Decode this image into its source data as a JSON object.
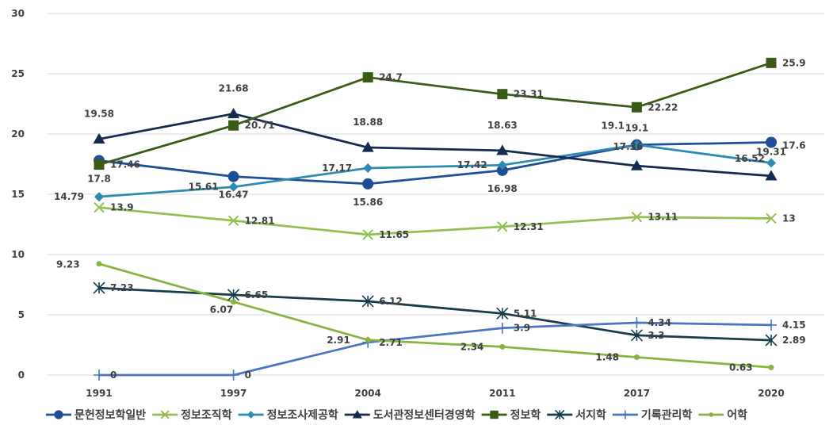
{
  "chart_data": {
    "type": "line",
    "x": [
      "1991",
      "1997",
      "2004",
      "2011",
      "2017",
      "2020"
    ],
    "ylim": [
      0,
      30
    ],
    "yticks": [
      0,
      5,
      10,
      15,
      20,
      25,
      30
    ],
    "grid": "horizontal",
    "legend": "bottom",
    "series": [
      {
        "name": "문헌정보학일반",
        "values": [
          17.8,
          16.47,
          15.86,
          16.98,
          19.1,
          19.31
        ],
        "color": "#1f4e99",
        "marker": "circle"
      },
      {
        "name": "정보조직학",
        "values": [
          13.9,
          12.81,
          11.65,
          12.31,
          13.11,
          13
        ],
        "color": "#92c050",
        "marker": "x"
      },
      {
        "name": "정보조사제공학",
        "values": [
          14.79,
          15.61,
          17.17,
          17.42,
          19.1,
          17.6
        ],
        "color": "#2e8bb0",
        "marker": "diamond"
      },
      {
        "name": "도서관정보센터경영학",
        "values": [
          19.58,
          21.68,
          18.88,
          18.63,
          17.36,
          16.52
        ],
        "color": "#152a4d",
        "marker": "triangle"
      },
      {
        "name": "정보학",
        "values": [
          17.46,
          20.71,
          24.7,
          23.31,
          22.22,
          25.9
        ],
        "color": "#3a5a17",
        "marker": "square"
      },
      {
        "name": "서지학",
        "values": [
          7.23,
          6.65,
          6.12,
          5.11,
          3.3,
          2.89
        ],
        "color": "#173c4c",
        "marker": "asterisk"
      },
      {
        "name": "기록관리학",
        "values": [
          0,
          0,
          2.71,
          3.9,
          4.34,
          4.15
        ],
        "color": "#4a74c4",
        "marker": "plus"
      },
      {
        "name": "어학",
        "values": [
          9.23,
          6.07,
          2.91,
          2.34,
          1.48,
          0.63
        ],
        "color": "#86b443",
        "marker": "dot"
      }
    ]
  }
}
